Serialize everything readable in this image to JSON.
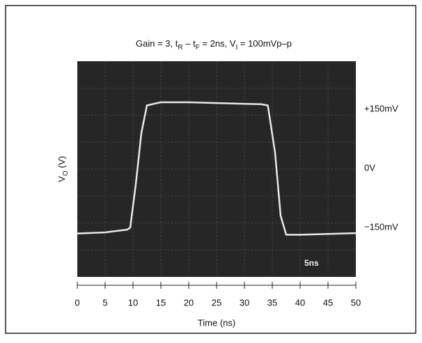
{
  "chart_data": {
    "type": "line",
    "title": [
      "Gain = 3, t",
      "R",
      " – t",
      "F",
      " = 2ns, V",
      "I",
      " = 100mVp–p"
    ],
    "x_label": "Time (ns)",
    "y_label": [
      "V",
      "O",
      " (V)"
    ],
    "annotation": "5ns",
    "xlim": [
      0,
      50
    ],
    "xticks": [
      0,
      5,
      10,
      15,
      20,
      25,
      30,
      35,
      40,
      45,
      50
    ],
    "ylim": [
      -275,
      272
    ],
    "yticks": [
      {
        "value": -150,
        "label": "−150mV"
      },
      {
        "value": 0,
        "label": "0V"
      },
      {
        "value": 150,
        "label": "+150mV"
      }
    ],
    "series": [
      {
        "color": "#e8e8e8",
        "x": [
          0,
          5,
          9,
          9.5,
          10.5,
          11.5,
          12.5,
          15,
          20,
          25,
          30,
          33,
          34.2,
          35.5,
          36.5,
          37.5,
          40,
          45,
          50
        ],
        "values": [
          -165,
          -162,
          -155,
          -150,
          -40,
          90,
          160,
          168,
          168,
          166,
          164,
          163,
          160,
          40,
          -120,
          -168,
          -168,
          -166,
          -164
        ]
      }
    ]
  }
}
